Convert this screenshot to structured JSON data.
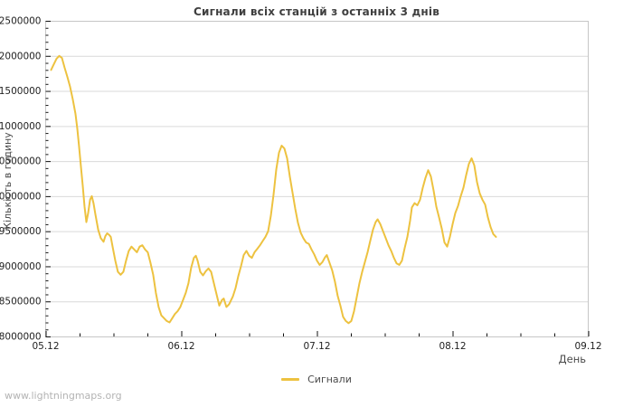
{
  "page": {
    "watermark": "www.lightningmaps.org"
  },
  "legend": {
    "entry": "Сигнали"
  },
  "chart_data": {
    "type": "line",
    "title": "Сигнали всіх станцій з останніх 3 днів",
    "xlabel": "День",
    "ylabel": "Кількість в годину",
    "legend_entries": [
      "Сигнали"
    ],
    "legend_position": "bottom-center",
    "grid": "horizontal-only",
    "xlim": [
      0,
      4
    ],
    "ylim": [
      8000000,
      12500000
    ],
    "x_tick_labels": [
      "05.12",
      "06.12",
      "07.12",
      "08.12",
      "09.12"
    ],
    "x_minor_tick_interval_days": 0.25,
    "y_ticks": [
      8000000,
      8500000,
      9000000,
      9500000,
      10000000,
      10500000,
      11000000,
      11500000,
      12000000,
      12500000
    ],
    "y_minor_tick_interval": 100000,
    "colors": {
      "line": "#EDC240",
      "grid": "#d9d9d9",
      "border": "#c6c6c6",
      "tick": "#111111",
      "tick_label": "#1f1f1f",
      "axis_title": "#4a4a4a",
      "title": "#3f3f3f",
      "watermark": "#b3b3b3"
    },
    "series": [
      {
        "name": "Сигнали",
        "x_unit": "days since 05.12 00:00",
        "y_unit": "signals per hour",
        "points": [
          [
            0.04,
            11800000
          ],
          [
            0.06,
            11880000
          ],
          [
            0.08,
            11960000
          ],
          [
            0.1,
            12000000
          ],
          [
            0.12,
            11970000
          ],
          [
            0.14,
            11830000
          ],
          [
            0.16,
            11700000
          ],
          [
            0.18,
            11560000
          ],
          [
            0.2,
            11380000
          ],
          [
            0.22,
            11170000
          ],
          [
            0.233,
            10960000
          ],
          [
            0.247,
            10700000
          ],
          [
            0.26,
            10420000
          ],
          [
            0.273,
            10150000
          ],
          [
            0.287,
            9850000
          ],
          [
            0.3,
            9630000
          ],
          [
            0.313,
            9760000
          ],
          [
            0.327,
            9950000
          ],
          [
            0.34,
            10000000
          ],
          [
            0.353,
            9900000
          ],
          [
            0.367,
            9740000
          ],
          [
            0.387,
            9520000
          ],
          [
            0.407,
            9400000
          ],
          [
            0.427,
            9350000
          ],
          [
            0.44,
            9430000
          ],
          [
            0.453,
            9470000
          ],
          [
            0.467,
            9450000
          ],
          [
            0.48,
            9420000
          ],
          [
            0.493,
            9280000
          ],
          [
            0.513,
            9080000
          ],
          [
            0.533,
            8920000
          ],
          [
            0.553,
            8880000
          ],
          [
            0.573,
            8920000
          ],
          [
            0.593,
            9080000
          ],
          [
            0.613,
            9220000
          ],
          [
            0.633,
            9280000
          ],
          [
            0.653,
            9240000
          ],
          [
            0.673,
            9200000
          ],
          [
            0.693,
            9280000
          ],
          [
            0.713,
            9300000
          ],
          [
            0.733,
            9240000
          ],
          [
            0.753,
            9200000
          ],
          [
            0.773,
            9050000
          ],
          [
            0.793,
            8880000
          ],
          [
            0.813,
            8620000
          ],
          [
            0.833,
            8420000
          ],
          [
            0.853,
            8300000
          ],
          [
            0.873,
            8260000
          ],
          [
            0.893,
            8220000
          ],
          [
            0.913,
            8200000
          ],
          [
            0.933,
            8260000
          ],
          [
            0.953,
            8320000
          ],
          [
            0.973,
            8360000
          ],
          [
            0.993,
            8420000
          ],
          [
            1.013,
            8520000
          ],
          [
            1.033,
            8620000
          ],
          [
            1.053,
            8760000
          ],
          [
            1.073,
            8980000
          ],
          [
            1.093,
            9120000
          ],
          [
            1.107,
            9150000
          ],
          [
            1.12,
            9080000
          ],
          [
            1.14,
            8920000
          ],
          [
            1.16,
            8870000
          ],
          [
            1.18,
            8930000
          ],
          [
            1.2,
            8970000
          ],
          [
            1.22,
            8920000
          ],
          [
            1.24,
            8760000
          ],
          [
            1.26,
            8600000
          ],
          [
            1.28,
            8440000
          ],
          [
            1.3,
            8520000
          ],
          [
            1.313,
            8540000
          ],
          [
            1.333,
            8420000
          ],
          [
            1.353,
            8460000
          ],
          [
            1.38,
            8570000
          ],
          [
            1.4,
            8690000
          ],
          [
            1.42,
            8860000
          ],
          [
            1.44,
            9000000
          ],
          [
            1.46,
            9160000
          ],
          [
            1.48,
            9220000
          ],
          [
            1.5,
            9150000
          ],
          [
            1.52,
            9120000
          ],
          [
            1.54,
            9200000
          ],
          [
            1.56,
            9250000
          ],
          [
            1.58,
            9300000
          ],
          [
            1.6,
            9360000
          ],
          [
            1.62,
            9420000
          ],
          [
            1.64,
            9500000
          ],
          [
            1.66,
            9720000
          ],
          [
            1.68,
            10020000
          ],
          [
            1.7,
            10380000
          ],
          [
            1.72,
            10620000
          ],
          [
            1.74,
            10720000
          ],
          [
            1.76,
            10680000
          ],
          [
            1.78,
            10540000
          ],
          [
            1.8,
            10280000
          ],
          [
            1.82,
            10050000
          ],
          [
            1.84,
            9820000
          ],
          [
            1.86,
            9620000
          ],
          [
            1.88,
            9480000
          ],
          [
            1.9,
            9400000
          ],
          [
            1.92,
            9340000
          ],
          [
            1.94,
            9320000
          ],
          [
            1.96,
            9240000
          ],
          [
            1.98,
            9170000
          ],
          [
            2.0,
            9080000
          ],
          [
            2.02,
            9020000
          ],
          [
            2.04,
            9060000
          ],
          [
            2.06,
            9130000
          ],
          [
            2.073,
            9160000
          ],
          [
            2.093,
            9050000
          ],
          [
            2.113,
            8940000
          ],
          [
            2.133,
            8780000
          ],
          [
            2.153,
            8580000
          ],
          [
            2.173,
            8440000
          ],
          [
            2.193,
            8280000
          ],
          [
            2.213,
            8220000
          ],
          [
            2.233,
            8190000
          ],
          [
            2.253,
            8220000
          ],
          [
            2.273,
            8360000
          ],
          [
            2.293,
            8560000
          ],
          [
            2.313,
            8760000
          ],
          [
            2.333,
            8920000
          ],
          [
            2.353,
            9060000
          ],
          [
            2.373,
            9200000
          ],
          [
            2.393,
            9360000
          ],
          [
            2.413,
            9520000
          ],
          [
            2.433,
            9630000
          ],
          [
            2.447,
            9670000
          ],
          [
            2.467,
            9600000
          ],
          [
            2.487,
            9500000
          ],
          [
            2.507,
            9400000
          ],
          [
            2.527,
            9300000
          ],
          [
            2.547,
            9220000
          ],
          [
            2.567,
            9120000
          ],
          [
            2.587,
            9040000
          ],
          [
            2.607,
            9020000
          ],
          [
            2.627,
            9080000
          ],
          [
            2.647,
            9260000
          ],
          [
            2.667,
            9420000
          ],
          [
            2.687,
            9650000
          ],
          [
            2.7,
            9840000
          ],
          [
            2.72,
            9900000
          ],
          [
            2.74,
            9870000
          ],
          [
            2.76,
            9950000
          ],
          [
            2.78,
            10120000
          ],
          [
            2.8,
            10260000
          ],
          [
            2.82,
            10370000
          ],
          [
            2.84,
            10280000
          ],
          [
            2.86,
            10080000
          ],
          [
            2.88,
            9850000
          ],
          [
            2.9,
            9700000
          ],
          [
            2.92,
            9540000
          ],
          [
            2.94,
            9340000
          ],
          [
            2.96,
            9280000
          ],
          [
            2.98,
            9420000
          ],
          [
            3.0,
            9600000
          ],
          [
            3.02,
            9760000
          ],
          [
            3.04,
            9860000
          ],
          [
            3.06,
            10000000
          ],
          [
            3.08,
            10120000
          ],
          [
            3.1,
            10300000
          ],
          [
            3.12,
            10460000
          ],
          [
            3.14,
            10540000
          ],
          [
            3.16,
            10440000
          ],
          [
            3.18,
            10200000
          ],
          [
            3.2,
            10040000
          ],
          [
            3.22,
            9950000
          ],
          [
            3.24,
            9880000
          ],
          [
            3.26,
            9700000
          ],
          [
            3.28,
            9560000
          ],
          [
            3.3,
            9460000
          ],
          [
            3.32,
            9420000
          ]
        ]
      }
    ]
  }
}
